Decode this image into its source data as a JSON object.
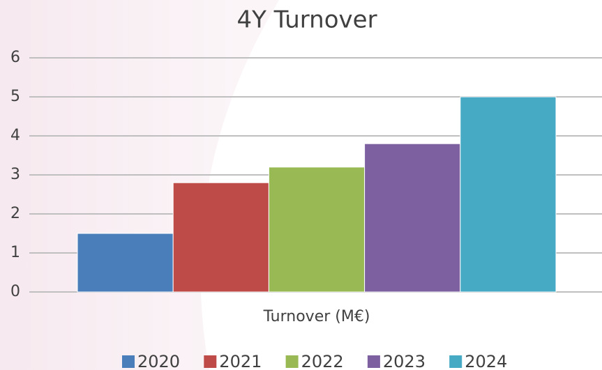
{
  "chart_data": {
    "type": "bar",
    "title": "4Y Turnover",
    "categories": [
      "Turnover (M€)"
    ],
    "series": [
      {
        "name": "2020",
        "color": "#4a7ebb",
        "values": [
          1.5
        ]
      },
      {
        "name": "2021",
        "color": "#be4b48",
        "values": [
          2.8
        ]
      },
      {
        "name": "2022",
        "color": "#98b954",
        "values": [
          3.2
        ]
      },
      {
        "name": "2023",
        "color": "#7d60a0",
        "values": [
          3.8
        ]
      },
      {
        "name": "2024",
        "color": "#46aac5",
        "values": [
          5.0
        ]
      }
    ],
    "ylim": [
      0,
      6
    ],
    "yticks": [
      0,
      1,
      2,
      3,
      4,
      5,
      6
    ],
    "grid": true,
    "legend": "bottom"
  }
}
